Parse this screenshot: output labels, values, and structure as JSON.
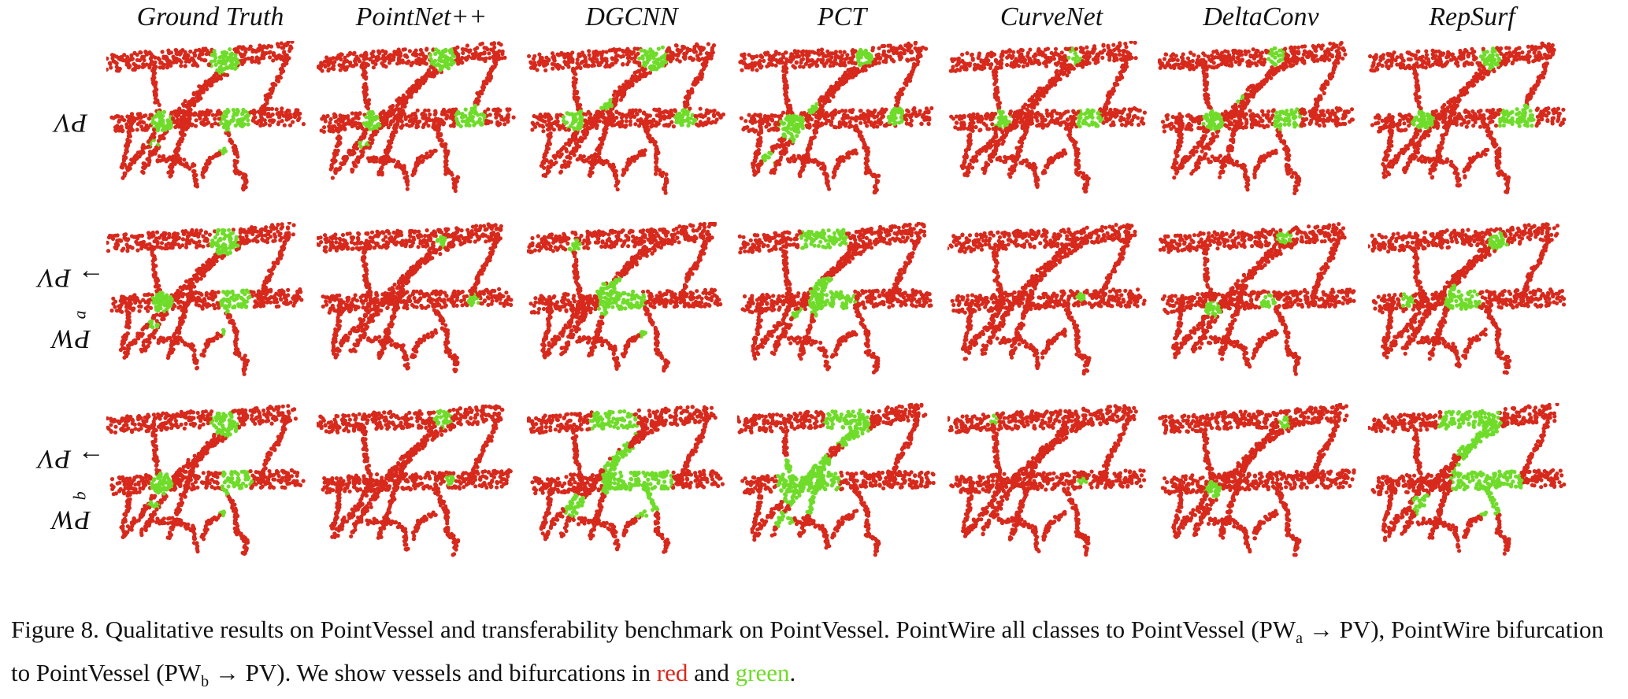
{
  "columns": [
    "Ground Truth",
    "PointNet++",
    "DGCNN",
    "PCT",
    "CurveNet",
    "DeltaConv",
    "RepSurf"
  ],
  "rows": [
    {
      "main": "PV",
      "sub": "",
      "tail": ""
    },
    {
      "main": "PW",
      "sub": "a",
      "tail": " → PV"
    },
    {
      "main": "PW",
      "sub": "b",
      "tail": " → PV"
    }
  ],
  "caption": {
    "label": "Figure 8.",
    "text1": "Qualitative results on PointVessel and transferability benchmark on PointVessel. PointWire all classes to PointVessel (PW",
    "sub_a": "a",
    "text2": " → PV), PointWire bifurcation to PointVessel (PW",
    "sub_b": "b",
    "text3": " → PV). We show vessels and bifurcations in ",
    "red_word": "red",
    "and_word": " and ",
    "green_word": "green",
    "end": "."
  },
  "colors": {
    "vessel": "#d7291c",
    "bifurcation": "#6fdc2a"
  }
}
